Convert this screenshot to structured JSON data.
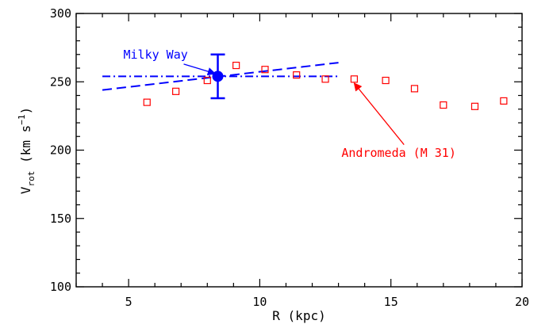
{
  "chart_data": {
    "type": "scatter",
    "title": "",
    "xlabel": "R (kpc)",
    "ylabel_main": "V",
    "ylabel_sub": "rot",
    "ylabel_units_pre": "(km s",
    "ylabel_units_sup": "−1",
    "ylabel_units_post": ")",
    "xlim": [
      3,
      20
    ],
    "ylim": [
      100,
      300
    ],
    "x_ticks": [
      5,
      10,
      15,
      20
    ],
    "y_ticks": [
      100,
      150,
      200,
      250,
      300
    ],
    "grid": false,
    "colors": {
      "milky_way": "#0000ff",
      "andromeda": "#ff0000",
      "axes": "#000000"
    },
    "series": [
      {
        "name": "Andromeda (M 31)",
        "marker": "open-square",
        "color": "#ff0000",
        "points": [
          {
            "x": 5.7,
            "y": 235
          },
          {
            "x": 6.8,
            "y": 243
          },
          {
            "x": 8.0,
            "y": 251
          },
          {
            "x": 9.1,
            "y": 262
          },
          {
            "x": 10.2,
            "y": 259
          },
          {
            "x": 11.4,
            "y": 255
          },
          {
            "x": 12.5,
            "y": 252
          },
          {
            "x": 13.6,
            "y": 252
          },
          {
            "x": 14.8,
            "y": 251
          },
          {
            "x": 15.9,
            "y": 245
          },
          {
            "x": 17.0,
            "y": 233
          },
          {
            "x": 18.2,
            "y": 232
          },
          {
            "x": 19.3,
            "y": 236
          }
        ]
      },
      {
        "name": "Milky Way",
        "marker": "filled-circle",
        "color": "#0000ff",
        "points": [
          {
            "x": 8.4,
            "y": 254,
            "yerr_low": 238,
            "yerr_high": 270
          }
        ]
      }
    ],
    "lines": [
      {
        "style": "dashed",
        "color": "#0000ff",
        "points": [
          {
            "x": 4.0,
            "y": 244
          },
          {
            "x": 13.0,
            "y": 264
          }
        ]
      },
      {
        "style": "dash-dot",
        "color": "#0000ff",
        "points": [
          {
            "x": 4.0,
            "y": 254
          },
          {
            "x": 13.0,
            "y": 254
          }
        ]
      }
    ],
    "annotations": [
      {
        "text": "Milky Way",
        "color": "#0000ff",
        "text_at": {
          "x": 4.8,
          "y": 267
        },
        "arrow_from": {
          "x": 7.1,
          "y": 263
        },
        "arrow_to": {
          "x": 8.3,
          "y": 256
        }
      },
      {
        "text": "Andromeda (M 31)",
        "color": "#ff0000",
        "text_at": {
          "x": 15.3,
          "y": 195
        },
        "arrow_from": {
          "x": 15.5,
          "y": 204
        },
        "arrow_to": {
          "x": 13.6,
          "y": 249
        }
      }
    ]
  }
}
